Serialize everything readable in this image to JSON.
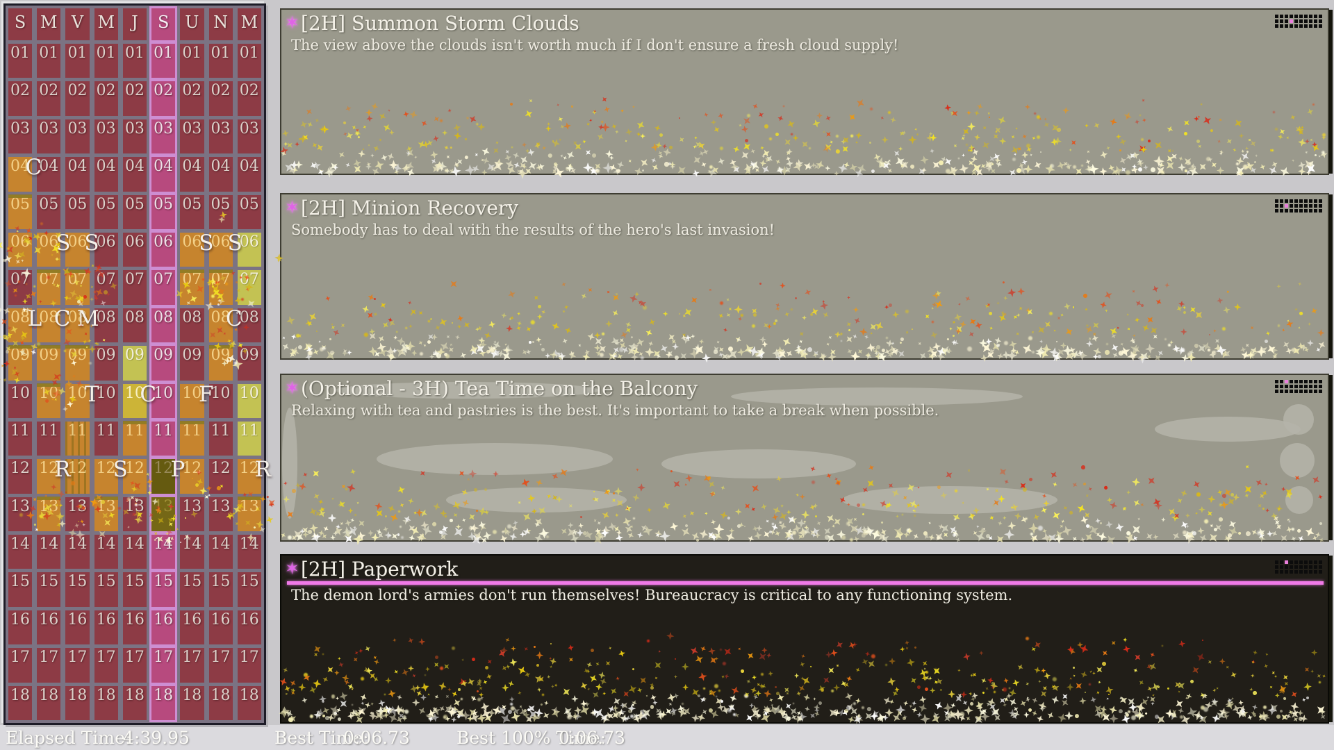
{
  "schedule": {
    "column_headers": [
      "S",
      "M",
      "V",
      "M",
      "J",
      "S",
      "U",
      "N",
      "M"
    ],
    "highlighted_column": 6,
    "hour_labels": [
      "01",
      "02",
      "03",
      "04",
      "05",
      "06",
      "07",
      "08",
      "09",
      "10",
      "11",
      "12",
      "13",
      "14",
      "15",
      "16",
      "17",
      "18"
    ],
    "cell_states": {
      "1": {
        "4": "orange",
        "5": "orange",
        "6": "orange",
        "8": "orange",
        "9": "orange"
      },
      "2": {
        "6": "orange",
        "7": "orange",
        "8": "orange",
        "9": "orange",
        "10": "orange",
        "12": "orange",
        "13": "orange"
      },
      "3": {
        "6": "orange",
        "7": "orange",
        "8": "orange",
        "9": "orange",
        "10": "orange",
        "11": "orange",
        "12": "orange"
      },
      "4": {
        "12": "orange",
        "13": "orange"
      },
      "5": {
        "9": "green",
        "10": "gold",
        "11": "orange",
        "12": "orange"
      },
      "6": {
        "12": "olive_dark",
        "13": "olive"
      },
      "7": {
        "6": "orange",
        "7": "orange",
        "10": "orange",
        "11": "orange",
        "12": "orange"
      },
      "8": {
        "6": "orange",
        "7": "orange",
        "8": "orange",
        "9": "orange"
      },
      "9": {
        "6": "green",
        "7": "green",
        "10": "green",
        "11": "green",
        "12": "orange",
        "13": "orange"
      }
    },
    "markers": [
      {
        "col": 1,
        "row": 4,
        "letter": "C"
      },
      {
        "col": 2,
        "row": 6,
        "letter": "S"
      },
      {
        "col": 3,
        "row": 6,
        "letter": "S"
      },
      {
        "col": 7,
        "row": 6,
        "letter": "S"
      },
      {
        "col": 8,
        "row": 6,
        "letter": "S"
      },
      {
        "col": 1,
        "row": 8,
        "letter": "L"
      },
      {
        "col": 2,
        "row": 8,
        "letter": "C"
      },
      {
        "col": 3,
        "row": 8,
        "letter": "M"
      },
      {
        "col": 8,
        "row": 8,
        "letter": "C"
      },
      {
        "col": 3,
        "row": 10,
        "letter": "T"
      },
      {
        "col": 5,
        "row": 10,
        "letter": "C"
      },
      {
        "col": 7,
        "row": 10,
        "letter": "F"
      },
      {
        "col": 2,
        "row": 12,
        "letter": "R"
      },
      {
        "col": 4,
        "row": 12,
        "letter": "S"
      },
      {
        "col": 6,
        "row": 12,
        "letter": "P"
      },
      {
        "col": 9,
        "row": 12,
        "letter": "R"
      }
    ],
    "strips": [
      [
        1,
        5
      ],
      [
        2,
        7
      ],
      [
        3,
        7
      ],
      [
        7,
        7
      ],
      [
        8,
        7
      ],
      [
        1,
        9
      ],
      [
        2,
        9
      ],
      [
        3,
        9
      ],
      [
        8,
        9
      ],
      [
        2,
        10
      ],
      [
        5,
        11
      ],
      [
        7,
        11
      ],
      [
        2,
        13
      ],
      [
        4,
        13
      ],
      [
        9,
        13
      ]
    ],
    "bars": [
      [
        3,
        11
      ],
      [
        3,
        12
      ]
    ]
  },
  "tasks": [
    {
      "title": "[2H] Summon Storm Clouds",
      "description": "The view above the clouds isn't worth much if I don't ensure a fresh cloud supply!",
      "selected": false,
      "progress_icon": {
        "rows": 3,
        "cols": 10,
        "active_row": 2,
        "active_col": 4
      }
    },
    {
      "title": "[2H] Minion Recovery",
      "description": "Somebody has to deal with the results of the hero's last invasion!",
      "selected": false,
      "progress_icon": {
        "rows": 3,
        "cols": 10,
        "active_row": 2,
        "active_col": 3
      }
    },
    {
      "title": "(Optional - 3H) Tea Time on the Balcony",
      "description": "Relaxing with tea and pastries is the best. It's important to take a break when possible.",
      "selected": false,
      "progress_icon": {
        "rows": 3,
        "cols": 10,
        "active_row": 1,
        "active_col": 3
      }
    },
    {
      "title": "[2H] Paperwork",
      "description": "The demon lord's armies don't run themselves! Bureaucracy is critical to any functioning system.",
      "selected": true,
      "progress_icon": {
        "rows": 3,
        "cols": 10,
        "active_row": 1,
        "active_col": 3
      }
    }
  ],
  "status_bar": {
    "elapsed_label": "Elapsed Time:",
    "elapsed_value": "4:39.95",
    "best_label": "Best Time:",
    "best_value": "0:06.73",
    "best_100_label": "Best 100% Time:",
    "best_100_value": "0:06.73"
  },
  "colors": {
    "accent_sparkle": "#df64e6",
    "active_task_underline": "#f07ae8",
    "cell_base": "#8d3b45",
    "cell_highlight_day": "#b74a7e",
    "cell_scheduled": "#c6842e",
    "cell_optional": "#c3c253",
    "cell_done": "#756716",
    "panel_gap": "#7b7383"
  }
}
